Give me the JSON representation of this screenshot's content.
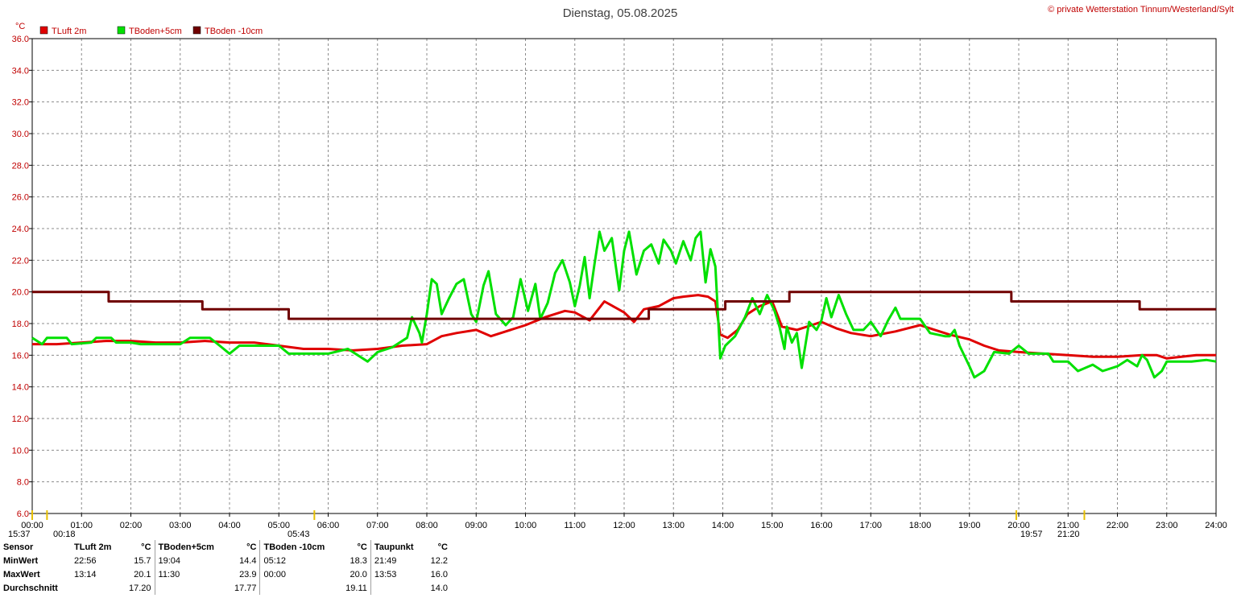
{
  "header": {
    "title": "Dienstag, 05.08.2025",
    "copyright": "© private Wetterstation Tinnum/Westerland/Sylt",
    "unit": "°C"
  },
  "colors": {
    "tluft": "#e00000",
    "tboden5": "#00e000",
    "tboden10": "#700000",
    "axis": "#c00000"
  },
  "chart_data": {
    "type": "line",
    "title": "Dienstag, 05.08.2025",
    "ylabel": "°C",
    "xlim": [
      0,
      24
    ],
    "ylim": [
      6,
      36
    ],
    "y_ticks": [
      "6.0",
      "8.0",
      "10.0",
      "12.0",
      "14.0",
      "16.0",
      "18.0",
      "20.0",
      "22.0",
      "24.0",
      "26.0",
      "28.0",
      "30.0",
      "32.0",
      "34.0",
      "36.0"
    ],
    "x_ticks": [
      "00:00",
      "01:00",
      "02:00",
      "03:00",
      "04:00",
      "05:00",
      "06:00",
      "07:00",
      "08:00",
      "09:00",
      "10:00",
      "11:00",
      "12:00",
      "13:00",
      "14:00",
      "15:00",
      "16:00",
      "17:00",
      "18:00",
      "19:00",
      "20:00",
      "21:00",
      "22:00",
      "23:00",
      "24:00"
    ],
    "grid": true,
    "legend_position": "top-left",
    "series": [
      {
        "name": "TLuft 2m",
        "color": "#e00000",
        "points": [
          [
            0,
            16.7
          ],
          [
            0.5,
            16.7
          ],
          [
            1,
            16.8
          ],
          [
            1.5,
            16.9
          ],
          [
            2,
            16.9
          ],
          [
            2.5,
            16.8
          ],
          [
            3,
            16.8
          ],
          [
            3.5,
            16.9
          ],
          [
            4,
            16.8
          ],
          [
            4.5,
            16.8
          ],
          [
            5,
            16.6
          ],
          [
            5.5,
            16.4
          ],
          [
            6,
            16.4
          ],
          [
            6.5,
            16.3
          ],
          [
            7,
            16.4
          ],
          [
            7.5,
            16.6
          ],
          [
            8,
            16.7
          ],
          [
            8.3,
            17.2
          ],
          [
            8.6,
            17.4
          ],
          [
            9,
            17.6
          ],
          [
            9.3,
            17.2
          ],
          [
            9.6,
            17.5
          ],
          [
            10,
            17.9
          ],
          [
            10.4,
            18.4
          ],
          [
            10.8,
            18.8
          ],
          [
            11,
            18.7
          ],
          [
            11.3,
            18.2
          ],
          [
            11.6,
            19.4
          ],
          [
            12,
            18.7
          ],
          [
            12.2,
            18.1
          ],
          [
            12.4,
            18.9
          ],
          [
            12.7,
            19.1
          ],
          [
            13,
            19.6
          ],
          [
            13.2,
            19.7
          ],
          [
            13.5,
            19.8
          ],
          [
            13.7,
            19.7
          ],
          [
            13.85,
            19.4
          ],
          [
            13.95,
            17.3
          ],
          [
            14.1,
            17.1
          ],
          [
            14.3,
            17.6
          ],
          [
            14.5,
            18.6
          ],
          [
            14.75,
            19.1
          ],
          [
            15,
            19.4
          ],
          [
            15.2,
            17.8
          ],
          [
            15.5,
            17.6
          ],
          [
            15.8,
            17.9
          ],
          [
            16,
            18.1
          ],
          [
            16.3,
            17.7
          ],
          [
            16.6,
            17.4
          ],
          [
            17,
            17.2
          ],
          [
            17.5,
            17.5
          ],
          [
            18,
            17.9
          ],
          [
            18.3,
            17.6
          ],
          [
            18.6,
            17.3
          ],
          [
            19,
            17.0
          ],
          [
            19.3,
            16.6
          ],
          [
            19.6,
            16.3
          ],
          [
            20,
            16.2
          ],
          [
            20.5,
            16.1
          ],
          [
            21,
            16.0
          ],
          [
            21.5,
            15.9
          ],
          [
            22,
            15.9
          ],
          [
            22.5,
            16.0
          ],
          [
            22.8,
            16.0
          ],
          [
            23,
            15.8
          ],
          [
            23.3,
            15.9
          ],
          [
            23.6,
            16.0
          ],
          [
            24,
            16.0
          ]
        ]
      },
      {
        "name": "TBoden+5cm",
        "color": "#00e000",
        "points": [
          [
            0,
            17.1
          ],
          [
            0.2,
            16.7
          ],
          [
            0.3,
            17.1
          ],
          [
            0.7,
            17.1
          ],
          [
            0.8,
            16.7
          ],
          [
            1.2,
            16.8
          ],
          [
            1.3,
            17.1
          ],
          [
            1.6,
            17.1
          ],
          [
            1.7,
            16.8
          ],
          [
            2,
            16.8
          ],
          [
            2.2,
            16.7
          ],
          [
            3,
            16.7
          ],
          [
            3.2,
            17.1
          ],
          [
            3.6,
            17.1
          ],
          [
            3.8,
            16.6
          ],
          [
            4,
            16.1
          ],
          [
            4.2,
            16.6
          ],
          [
            5,
            16.6
          ],
          [
            5.2,
            16.1
          ],
          [
            5.5,
            16.1
          ],
          [
            6,
            16.1
          ],
          [
            6.4,
            16.4
          ],
          [
            6.8,
            15.6
          ],
          [
            7,
            16.2
          ],
          [
            7.3,
            16.5
          ],
          [
            7.6,
            17.1
          ],
          [
            7.7,
            18.4
          ],
          [
            7.85,
            17.4
          ],
          [
            7.9,
            16.8
          ],
          [
            8,
            18.6
          ],
          [
            8.1,
            20.8
          ],
          [
            8.2,
            20.5
          ],
          [
            8.3,
            18.6
          ],
          [
            8.45,
            19.6
          ],
          [
            8.6,
            20.5
          ],
          [
            8.75,
            20.8
          ],
          [
            8.9,
            18.6
          ],
          [
            9,
            18.1
          ],
          [
            9.15,
            20.4
          ],
          [
            9.25,
            21.3
          ],
          [
            9.4,
            18.6
          ],
          [
            9.6,
            17.9
          ],
          [
            9.75,
            18.4
          ],
          [
            9.9,
            20.8
          ],
          [
            10.05,
            18.8
          ],
          [
            10.2,
            20.5
          ],
          [
            10.3,
            18.3
          ],
          [
            10.45,
            19.3
          ],
          [
            10.6,
            21.2
          ],
          [
            10.75,
            22.0
          ],
          [
            10.9,
            20.6
          ],
          [
            11,
            19.1
          ],
          [
            11.1,
            20.4
          ],
          [
            11.2,
            22.2
          ],
          [
            11.3,
            19.6
          ],
          [
            11.4,
            21.8
          ],
          [
            11.5,
            23.8
          ],
          [
            11.6,
            22.6
          ],
          [
            11.75,
            23.4
          ],
          [
            11.9,
            20.1
          ],
          [
            12,
            22.6
          ],
          [
            12.1,
            23.8
          ],
          [
            12.25,
            21.1
          ],
          [
            12.4,
            22.6
          ],
          [
            12.55,
            23.0
          ],
          [
            12.7,
            21.8
          ],
          [
            12.8,
            23.3
          ],
          [
            12.95,
            22.6
          ],
          [
            13.05,
            21.8
          ],
          [
            13.2,
            23.2
          ],
          [
            13.35,
            22.0
          ],
          [
            13.45,
            23.4
          ],
          [
            13.55,
            23.8
          ],
          [
            13.65,
            20.6
          ],
          [
            13.75,
            22.7
          ],
          [
            13.85,
            21.6
          ],
          [
            13.95,
            15.8
          ],
          [
            14.05,
            16.6
          ],
          [
            14.25,
            17.2
          ],
          [
            14.45,
            18.4
          ],
          [
            14.6,
            19.6
          ],
          [
            14.75,
            18.6
          ],
          [
            14.9,
            19.8
          ],
          [
            15.05,
            18.8
          ],
          [
            15.15,
            17.8
          ],
          [
            15.25,
            16.4
          ],
          [
            15.3,
            17.8
          ],
          [
            15.4,
            16.8
          ],
          [
            15.5,
            17.4
          ],
          [
            15.6,
            15.2
          ],
          [
            15.75,
            18.1
          ],
          [
            15.9,
            17.6
          ],
          [
            16,
            18.2
          ],
          [
            16.1,
            19.6
          ],
          [
            16.2,
            18.4
          ],
          [
            16.35,
            19.8
          ],
          [
            16.5,
            18.6
          ],
          [
            16.65,
            17.6
          ],
          [
            16.85,
            17.6
          ],
          [
            17,
            18.1
          ],
          [
            17.2,
            17.2
          ],
          [
            17.35,
            18.2
          ],
          [
            17.5,
            19.0
          ],
          [
            17.6,
            18.3
          ],
          [
            18,
            18.3
          ],
          [
            18.2,
            17.4
          ],
          [
            18.5,
            17.2
          ],
          [
            18.6,
            17.2
          ],
          [
            18.7,
            17.6
          ],
          [
            18.8,
            16.6
          ],
          [
            19,
            15.3
          ],
          [
            19.1,
            14.6
          ],
          [
            19.3,
            15.0
          ],
          [
            19.5,
            16.2
          ],
          [
            19.8,
            16.1
          ],
          [
            20,
            16.6
          ],
          [
            20.2,
            16.1
          ],
          [
            20.6,
            16.1
          ],
          [
            20.7,
            15.6
          ],
          [
            21,
            15.6
          ],
          [
            21.2,
            15.0
          ],
          [
            21.5,
            15.4
          ],
          [
            21.7,
            15.0
          ],
          [
            22,
            15.3
          ],
          [
            22.2,
            15.7
          ],
          [
            22.4,
            15.3
          ],
          [
            22.5,
            16.0
          ],
          [
            22.6,
            15.7
          ],
          [
            22.75,
            14.6
          ],
          [
            22.9,
            15.0
          ],
          [
            23,
            15.6
          ],
          [
            23.5,
            15.6
          ],
          [
            23.8,
            15.7
          ],
          [
            24,
            15.6
          ]
        ]
      },
      {
        "name": "TBoden -10cm",
        "color": "#700000",
        "points": [
          [
            0,
            20.0
          ],
          [
            1.55,
            20.0
          ],
          [
            1.55,
            19.4
          ],
          [
            3.45,
            19.4
          ],
          [
            3.45,
            18.9
          ],
          [
            5.2,
            18.9
          ],
          [
            5.2,
            18.3
          ],
          [
            12.5,
            18.3
          ],
          [
            12.5,
            18.9
          ],
          [
            14.05,
            18.9
          ],
          [
            14.05,
            19.4
          ],
          [
            15.35,
            19.4
          ],
          [
            15.35,
            20.0
          ],
          [
            19.85,
            20.0
          ],
          [
            19.85,
            19.4
          ],
          [
            22.45,
            19.4
          ],
          [
            22.45,
            18.9
          ],
          [
            24,
            18.9
          ]
        ]
      }
    ]
  },
  "sun_markers": [
    {
      "time": "15:37",
      "x": 0.0
    },
    {
      "time": "00:18",
      "x": 0.3
    },
    {
      "time": "05:43",
      "x": 5.72
    },
    {
      "time": "19:57",
      "x": 19.95
    },
    {
      "time": "21:20",
      "x": 21.33
    }
  ],
  "stats": {
    "headers": {
      "sensor": "Sensor",
      "tluft": "TLuft 2m",
      "tboden5": "TBoden+5cm",
      "tboden10": "TBoden -10cm",
      "taupunkt": "Taupunkt",
      "unit": "°C"
    },
    "rows": [
      {
        "label": "MinWert",
        "tluft_time": "22:56",
        "tluft_val": "15.7",
        "tb5_time": "19:04",
        "tb5_val": "14.4",
        "tb10_time": "05:12",
        "tb10_val": "18.3",
        "tp_time": "21:49",
        "tp_val": "12.2"
      },
      {
        "label": "MaxWert",
        "tluft_time": "13:14",
        "tluft_val": "20.1",
        "tb5_time": "11:30",
        "tb5_val": "23.9",
        "tb10_time": "00:00",
        "tb10_val": "20.0",
        "tp_time": "13:53",
        "tp_val": "16.0"
      },
      {
        "label": "Durchschnitt",
        "tluft_time": "",
        "tluft_val": "17.20",
        "tb5_time": "",
        "tb5_val": "17.77",
        "tb10_time": "",
        "tb10_val": "19.11",
        "tp_time": "",
        "tp_val": "14.0"
      }
    ]
  }
}
